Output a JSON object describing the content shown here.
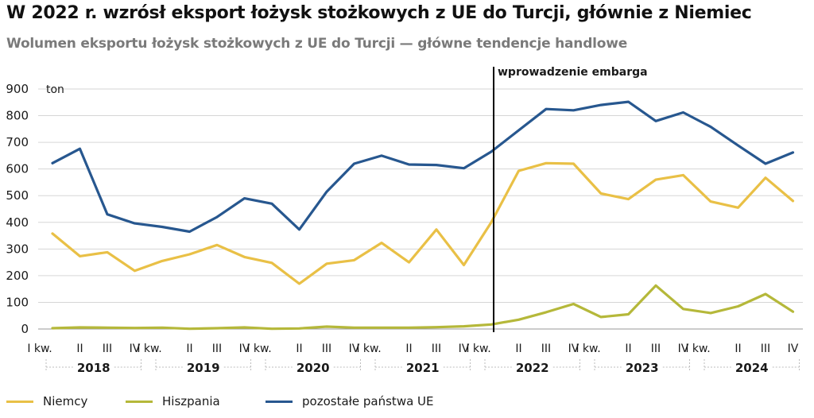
{
  "title": "W 2022 r. wzrósł eksport łożysk stożkowych z UE do Turcji, głównie z Niemiec",
  "subtitle": "Wolumen eksportu łożysk stożkowych z UE do Turcji — główne tendencje handlowe",
  "chart_data": {
    "type": "line",
    "ylabel": "ton",
    "ylim": [
      0,
      900
    ],
    "yticks": [
      "0",
      "100",
      "200",
      "300",
      "400",
      "500",
      "600",
      "700",
      "800",
      "900"
    ],
    "grid": "horizontal",
    "legend_position": "bottom",
    "categories": [
      "I kw.",
      "II",
      "III",
      "IV",
      "I kw.",
      "II",
      "III",
      "IV",
      "I kw.",
      "II",
      "III",
      "IV",
      "I kw.",
      "II",
      "III",
      "IV",
      "I kw.",
      "II",
      "III",
      "IV",
      "I kw.",
      "II",
      "III",
      "IV",
      "I kw.",
      "II",
      "III",
      "IV"
    ],
    "years": [
      "2018",
      "2019",
      "2020",
      "2021",
      "2022",
      "2023",
      "2024"
    ],
    "annotation": {
      "label": "wprowadzenie embarga",
      "after_index": 16
    },
    "series": [
      {
        "name": "Niemcy",
        "color": "#e9c046",
        "values": [
          358,
          273,
          288,
          218,
          255,
          280,
          315,
          270,
          248,
          170,
          245,
          258,
          323,
          250,
          373,
          240,
          400,
          593,
          622,
          620,
          508,
          487,
          560,
          577,
          478,
          455,
          567,
          480
        ]
      },
      {
        "name": "Hiszpania",
        "color": "#b5b83a",
        "values": [
          3,
          6,
          5,
          4,
          5,
          1,
          3,
          6,
          1,
          2,
          9,
          5,
          5,
          5,
          7,
          10,
          17,
          35,
          63,
          94,
          45,
          55,
          163,
          75,
          60,
          85,
          131,
          65
        ]
      },
      {
        "name": "pozostałe państwa UE",
        "color": "#27578f",
        "values": [
          622,
          676,
          430,
          396,
          383,
          365,
          420,
          490,
          470,
          373,
          515,
          620,
          650,
          617,
          615,
          603,
          665,
          745,
          825,
          820,
          840,
          852,
          780,
          812,
          758,
          688,
          620,
          662
        ]
      }
    ]
  }
}
